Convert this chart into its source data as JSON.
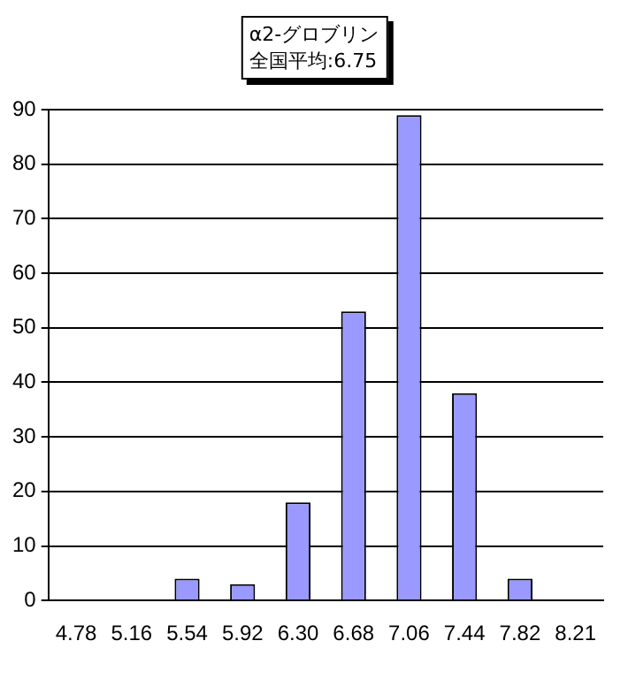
{
  "chart_data": {
    "type": "bar",
    "title": "α2-グロブリン",
    "subtitle": "全国平均:6.75",
    "categories": [
      "4.78",
      "5.16",
      "5.54",
      "5.92",
      "6.30",
      "6.68",
      "7.06",
      "7.44",
      "7.82",
      "8.21"
    ],
    "values": [
      0,
      0,
      4,
      3,
      18,
      53,
      89,
      38,
      4,
      0
    ],
    "color": "#9999ff",
    "ylim": [
      0,
      90
    ],
    "yticks": [
      0,
      10,
      20,
      30,
      40,
      50,
      60,
      70,
      80,
      90
    ],
    "grid": "y"
  }
}
